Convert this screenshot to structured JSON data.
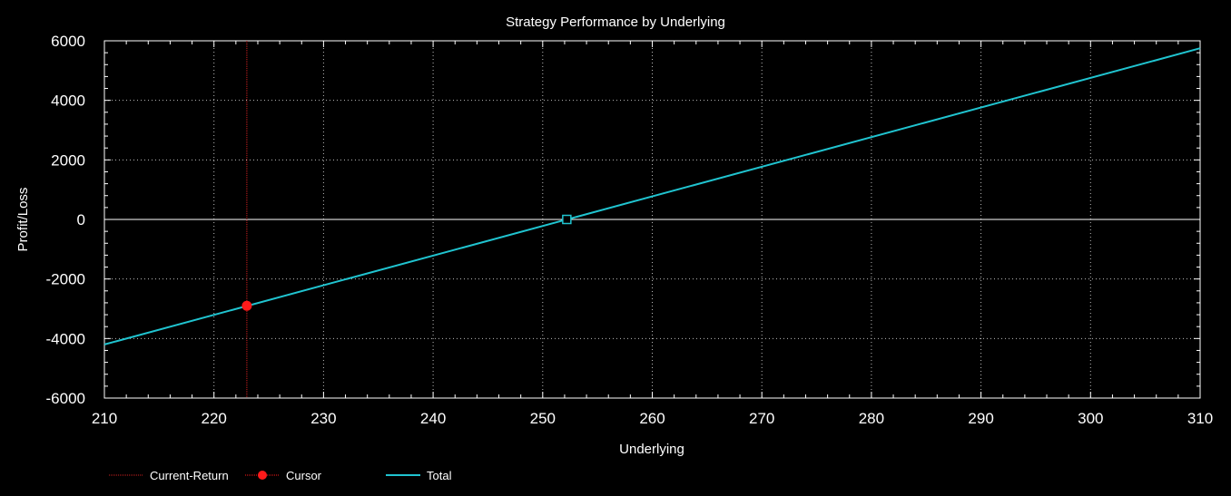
{
  "chart_data": {
    "type": "line",
    "title": "Strategy Performance by Underlying",
    "xlabel": "Underlying",
    "ylabel": "Profit/Loss",
    "xlim": [
      210,
      310
    ],
    "ylim": [
      -6000,
      6000
    ],
    "x_ticks": [
      210,
      220,
      230,
      240,
      250,
      260,
      270,
      280,
      290,
      300,
      310
    ],
    "y_ticks": [
      6000,
      4000,
      2000,
      0,
      -2000,
      -4000,
      -6000
    ],
    "grid": true,
    "legend_position": "bottom-left",
    "series": [
      {
        "name": "Total",
        "color": "#20c4d0",
        "x": [
          210,
          310
        ],
        "y": [
          -4200,
          5750
        ]
      }
    ],
    "cursor": {
      "name": "Cursor",
      "x": 223,
      "y": -2900,
      "color": "#ff1a1a"
    },
    "current_return": {
      "name": "Current-Return",
      "x": 223,
      "color": "#d42020"
    },
    "breakeven_marker": {
      "x": 252.2,
      "y": 0
    },
    "legend": [
      {
        "label": "Current-Return",
        "kind": "dotted-line",
        "color": "#d42020"
      },
      {
        "label": "Cursor",
        "kind": "dot",
        "color": "#ff1a1a"
      },
      {
        "label": "Total",
        "kind": "line",
        "color": "#20c4d0"
      }
    ]
  }
}
